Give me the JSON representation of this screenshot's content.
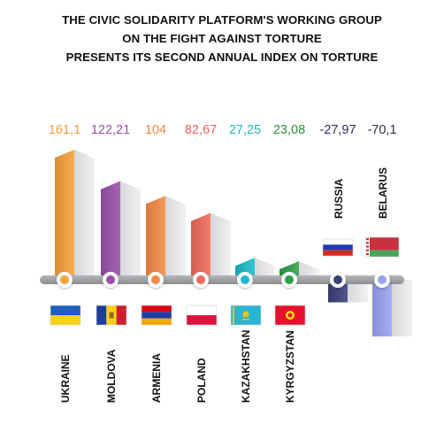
{
  "title_lines": [
    "THE CIVIC SOLIDARITY PLATFORM'S WORKING GROUP",
    "ON THE FIGHT AGAINST TORTURE",
    "PRESENTS ITS SECOND ANNUAL INDEX ON TORTURE"
  ],
  "chart_data": {
    "type": "bar",
    "categories": [
      "UKRAINE",
      "MOLDOVA",
      "ARMENIA",
      "POLAND",
      "KAZAKHSTAN",
      "KYRGYZSTAN",
      "RUSSIA",
      "BELARUS"
    ],
    "values": [
      161.1,
      122.21,
      104,
      82.67,
      27.25,
      23.08,
      -27.97,
      -70.1
    ],
    "value_labels": [
      "161,1",
      "122,21",
      "104",
      "82,67",
      "27,25",
      "23,08",
      "-27,97",
      "-70,1"
    ],
    "colors": [
      "#f7a03c",
      "#9b4fa8",
      "#f58a45",
      "#f06a5a",
      "#1bbcca",
      "#2fa048",
      "#3b3f7a",
      "#9aa3f2"
    ],
    "label_colors": [
      "#f39b3a",
      "#9b4fa8",
      "#f5873e",
      "#ee6456",
      "#25b5c4",
      "#2e8f3c",
      "#2b2d5a",
      "#2b2d5a"
    ],
    "flags": [
      "ukraine-flag",
      "moldova-flag",
      "armenia-flag",
      "poland-flag",
      "kazakhstan-flag",
      "kyrgyzstan-flag",
      "russia-flag",
      "belarus-flag"
    ],
    "ylim": [
      -70.1,
      161.1
    ]
  }
}
